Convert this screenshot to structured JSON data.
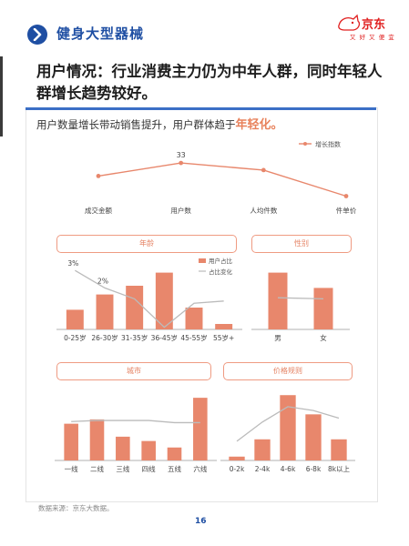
{
  "header": {
    "section_title": "健身大型器械",
    "brand_name": "京东",
    "brand_slogan": "又 好 又 便 宜",
    "icon": "chevron-right-icon"
  },
  "headline": "用户情况：行业消费主力仍为中年人群，同时年轻人群增长趋势较好。",
  "card": {
    "subtitle_prefix": "用户数量增长带动销售提升，用户群体趋于",
    "subtitle_highlight": "年轻化。"
  },
  "colors": {
    "bar": "#e8876c",
    "line": "#bbbbbb",
    "accent_line": "#e8876c",
    "brand_blue": "#1f4fa3",
    "brand_red": "#e02020"
  },
  "chart_data": [
    {
      "id": "growth",
      "type": "line",
      "categories": [
        "成交金额",
        "用户数",
        "人均件数",
        "件单价"
      ],
      "series": [
        {
          "name": "增长指数",
          "values": [
            22,
            33,
            27,
            5
          ]
        }
      ],
      "data_labels": [
        "",
        "33",
        "",
        ""
      ],
      "ylim": [
        0,
        40
      ],
      "legend": "top-right",
      "grid": false
    },
    {
      "id": "age",
      "type": "bar",
      "pill_label": "年龄",
      "categories": [
        "0-25岁",
        "26-30岁",
        "31-35岁",
        "36-45岁",
        "45-55岁",
        "55岁+"
      ],
      "series": [
        {
          "name": "用户占比",
          "values": [
            9,
            16,
            20,
            26,
            10,
            2.5
          ]
        },
        {
          "name": "占比变化",
          "values": [
            27,
            19,
            14,
            1,
            12,
            13
          ]
        }
      ],
      "data_labels": [
        "3%",
        "2%",
        "",
        "",
        "",
        ""
      ],
      "ylim": [
        0,
        30
      ],
      "legend": "top-right",
      "grid": false
    },
    {
      "id": "gender",
      "type": "bar",
      "pill_label": "性别",
      "categories": [
        "男",
        "女"
      ],
      "series": [
        {
          "name": "用户占比",
          "values": [
            52,
            38
          ]
        },
        {
          "name": "占比变化",
          "values": [
            29,
            28
          ]
        }
      ],
      "ylim": [
        0,
        60
      ],
      "grid": false
    },
    {
      "id": "city",
      "type": "bar",
      "pill_label": "城市",
      "categories": [
        "一线",
        "二线",
        "三线",
        "四线",
        "五线",
        "六线"
      ],
      "series": [
        {
          "name": "用户占比",
          "values": [
            17,
            19,
            11,
            9,
            6,
            29
          ]
        },
        {
          "name": "占比变化",
          "values": [
            18,
            18.5,
            18.5,
            18.5,
            17.5,
            17.5
          ]
        }
      ],
      "ylim": [
        0,
        32
      ],
      "grid": false
    },
    {
      "id": "price",
      "type": "bar",
      "pill_label": "价格规则",
      "categories": [
        "0-2k",
        "2-4k",
        "4-6k",
        "6-8k",
        "8k以上"
      ],
      "series": [
        {
          "name": "用户占比",
          "values": [
            2,
            11,
            34,
            24,
            11
          ]
        },
        {
          "name": "占比变化",
          "values": [
            10,
            20,
            28,
            26,
            22
          ]
        }
      ],
      "ylim": [
        0,
        36
      ],
      "grid": false
    }
  ],
  "footer": {
    "source": "数据来源：京东大数据。",
    "page": "16"
  }
}
